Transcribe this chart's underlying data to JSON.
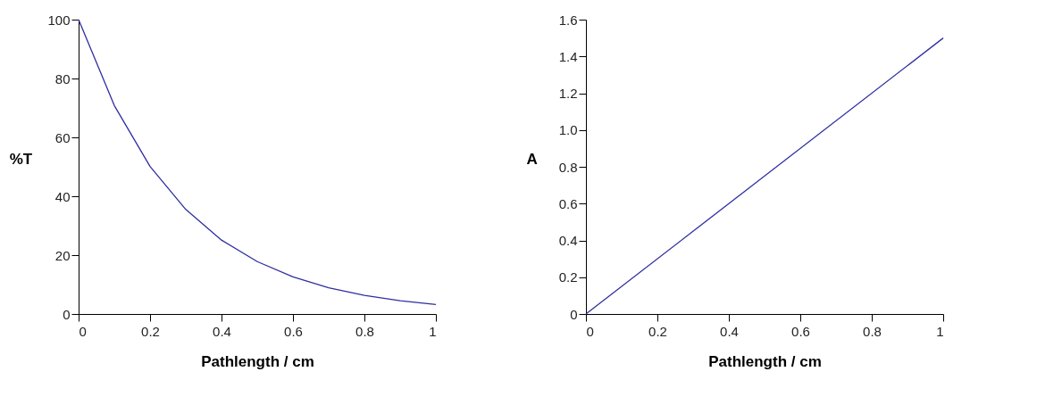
{
  "chart_data": [
    {
      "type": "line",
      "xlabel": "Pathlength / cm",
      "ylabel": "%T",
      "x": [
        0,
        0.1,
        0.2,
        0.3,
        0.4,
        0.5,
        0.6,
        0.7,
        0.8,
        0.9,
        1
      ],
      "series": [
        {
          "color": "#2e2ea0",
          "values": [
            100,
            70.8,
            50.1,
            35.5,
            25.1,
            17.8,
            12.6,
            8.9,
            6.3,
            4.5,
            3.2
          ]
        }
      ],
      "xlim": [
        0,
        1
      ],
      "xticks": [
        0,
        0.2,
        0.4,
        0.6,
        0.8,
        1
      ],
      "ylim": [
        0,
        100
      ],
      "yticks": [
        0,
        20,
        40,
        60,
        80,
        100
      ],
      "grid": false
    },
    {
      "type": "line",
      "xlabel": "Pathlength / cm",
      "ylabel": "A",
      "x": [
        0,
        1
      ],
      "series": [
        {
          "color": "#2e2ea0",
          "values": [
            0,
            1.5
          ]
        }
      ],
      "xlim": [
        0,
        1
      ],
      "xticks": [
        0,
        0.2,
        0.4,
        0.6,
        0.8,
        1
      ],
      "ylim": [
        0,
        1.6
      ],
      "yticks": [
        0,
        0.2,
        0.4,
        0.6,
        0.8,
        {
          "value": 1,
          "label": "1.0"
        },
        1.2,
        1.4,
        1.6
      ],
      "grid": false
    }
  ]
}
